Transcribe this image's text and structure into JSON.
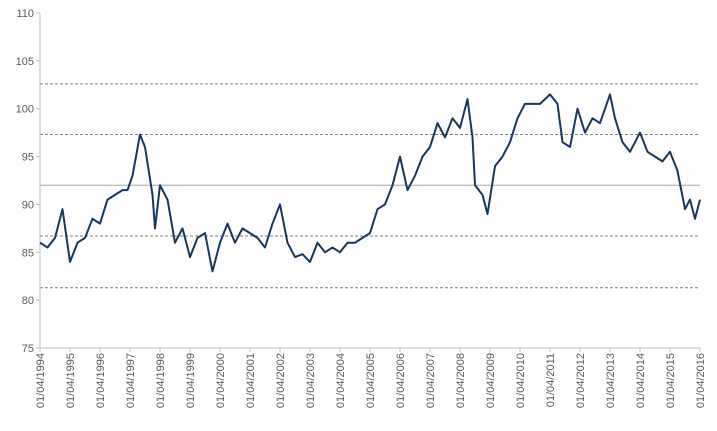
{
  "chart_data": {
    "type": "line",
    "x": [
      "01/04/1994",
      "01/07/1994",
      "01/10/1994",
      "01/01/1995",
      "01/04/1995",
      "01/07/1995",
      "01/10/1995",
      "01/01/1996",
      "01/04/1996",
      "01/07/1996",
      "01/10/1996",
      "01/01/1997",
      "01/03/1997",
      "01/05/1997",
      "01/08/1997",
      "01/10/1997",
      "01/01/1998",
      "01/02/1998",
      "01/04/1998",
      "01/07/1998",
      "01/10/1998",
      "01/01/1999",
      "01/04/1999",
      "01/07/1999",
      "01/10/1999",
      "01/01/2000",
      "01/04/2000",
      "01/07/2000",
      "01/10/2000",
      "01/01/2001",
      "01/04/2001",
      "01/07/2001",
      "01/10/2001",
      "01/01/2002",
      "01/04/2002",
      "01/07/2002",
      "01/10/2002",
      "01/01/2003",
      "01/04/2003",
      "01/07/2003",
      "01/10/2003",
      "01/01/2004",
      "01/04/2004",
      "01/07/2004",
      "01/10/2004",
      "01/01/2005",
      "01/04/2005",
      "01/07/2005",
      "01/10/2005",
      "01/01/2006",
      "01/04/2006",
      "01/07/2006",
      "01/10/2006",
      "01/01/2007",
      "01/04/2007",
      "01/07/2007",
      "01/10/2007",
      "01/01/2008",
      "01/04/2008",
      "01/07/2008",
      "01/09/2008",
      "01/10/2008",
      "01/01/2009",
      "01/03/2009",
      "01/06/2009",
      "01/09/2009",
      "01/12/2009",
      "01/03/2010",
      "01/06/2010",
      "01/09/2010",
      "01/12/2010",
      "01/04/2011",
      "01/07/2011",
      "01/09/2011",
      "01/12/2011",
      "01/03/2012",
      "01/06/2012",
      "01/09/2012",
      "01/12/2012",
      "01/04/2013",
      "01/06/2013",
      "01/09/2013",
      "01/12/2013",
      "01/04/2014",
      "01/07/2014",
      "01/10/2014",
      "01/01/2015",
      "01/04/2015",
      "01/07/2015",
      "01/10/2015",
      "01/12/2015",
      "01/02/2016",
      "01/04/2016"
    ],
    "series": [
      {
        "color": "#17375e",
        "values": [
          86,
          85.5,
          86.5,
          89.5,
          84,
          86,
          86.5,
          88.5,
          88,
          90.5,
          91,
          91.5,
          91.5,
          93,
          97.3,
          96,
          91,
          87.5,
          92,
          90.5,
          86,
          87.5,
          84.5,
          86.5,
          87,
          83,
          86,
          88,
          86,
          87.5,
          87,
          86.5,
          85.5,
          88,
          90,
          86,
          84.5,
          84.8,
          84,
          86,
          85,
          85.5,
          85,
          86,
          86,
          86.5,
          87,
          89.5,
          90,
          92,
          95,
          91.5,
          93,
          95,
          96,
          98.5,
          97,
          99,
          98,
          101,
          97,
          92,
          91,
          89,
          94,
          95,
          96.5,
          99,
          100.5,
          100.5,
          100.5,
          101.5,
          100.5,
          96.5,
          96,
          100,
          97.5,
          99,
          98.5,
          101.5,
          99,
          96.5,
          95.5,
          97.5,
          95.5,
          95,
          94.5,
          95.5,
          93.5,
          89.5,
          90.5,
          88.5,
          90.5
        ]
      }
    ],
    "xlim": [
      "01/04/1994",
      "01/04/2016"
    ],
    "xticks": [
      "01/04/1994",
      "01/04/1995",
      "01/04/1996",
      "01/04/1997",
      "01/04/1998",
      "01/04/1999",
      "01/04/2000",
      "01/04/2001",
      "01/04/2002",
      "01/04/2003",
      "01/04/2004",
      "01/04/2005",
      "01/04/2006",
      "01/04/2007",
      "01/04/2008",
      "01/04/2009",
      "01/04/2010",
      "01/04/2011",
      "01/04/2012",
      "01/04/2013",
      "01/04/2014",
      "01/04/2015",
      "01/04/2016"
    ],
    "ylim": [
      75,
      110
    ],
    "yticks": [
      75,
      80,
      85,
      90,
      95,
      100,
      105,
      110
    ],
    "reference_lines": [
      {
        "value": 102.6,
        "dashed": true
      },
      {
        "value": 97.3,
        "dashed": true
      },
      {
        "value": 92,
        "dashed": false
      },
      {
        "value": 86.7,
        "dashed": true
      },
      {
        "value": 81.3,
        "dashed": true
      }
    ]
  }
}
